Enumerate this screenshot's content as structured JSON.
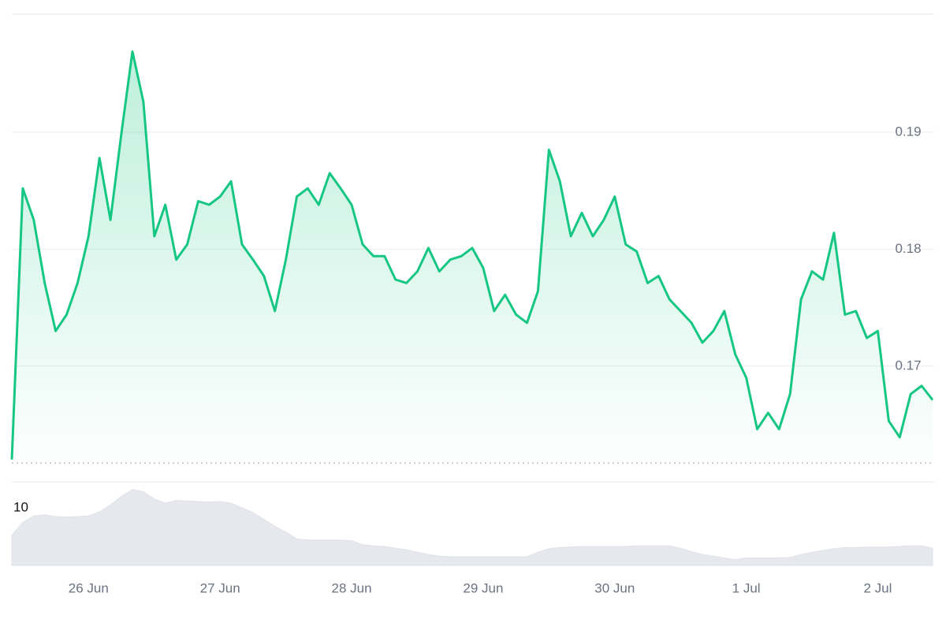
{
  "chart_data": {
    "type": "line",
    "categories": [
      null,
      null,
      null,
      null,
      null,
      null,
      null,
      "26 Jun",
      null,
      null,
      null,
      null,
      null,
      null,
      null,
      null,
      null,
      null,
      null,
      "27 Jun",
      null,
      null,
      null,
      null,
      null,
      null,
      null,
      null,
      null,
      null,
      null,
      "28 Jun",
      null,
      null,
      null,
      null,
      null,
      null,
      null,
      null,
      null,
      null,
      null,
      "29 Jun",
      null,
      null,
      null,
      null,
      null,
      null,
      null,
      null,
      null,
      null,
      null,
      "30 Jun",
      null,
      null,
      null,
      null,
      null,
      null,
      null,
      null,
      null,
      null,
      null,
      "1 Jul",
      null,
      null,
      null,
      null,
      null,
      null,
      null,
      null,
      null,
      null,
      null,
      "2 Jul",
      null,
      null,
      null,
      null,
      null
    ],
    "series": [
      {
        "color": "#16c784",
        "values": [
          0.162,
          0.1852,
          0.1825,
          0.1771,
          0.173,
          0.1744,
          0.1771,
          0.1811,
          0.1878,
          0.1825,
          0.1899,
          0.1969,
          0.1926,
          0.1811,
          0.1838,
          0.1791,
          0.1804,
          0.1841,
          0.1838,
          0.1845,
          0.1858,
          0.1804,
          0.1791,
          0.1777,
          0.1747,
          0.1791,
          0.1845,
          0.1852,
          0.1838,
          0.1865,
          0.1852,
          0.1838,
          0.1804,
          0.1794,
          0.1794,
          0.1774,
          0.1771,
          0.1781,
          0.1801,
          0.1781,
          0.1791,
          0.1794,
          0.1801,
          0.1784,
          0.1747,
          0.1761,
          0.1744,
          0.1737,
          0.1764,
          0.1885,
          0.1858,
          0.1811,
          0.1831,
          0.1811,
          0.1825,
          0.1845,
          0.1804,
          0.1798,
          0.1771,
          0.1777,
          0.1757,
          0.1747,
          0.1737,
          0.172,
          0.173,
          0.1747,
          0.171,
          0.169,
          0.1646,
          0.166,
          0.1646,
          0.1676,
          0.1757,
          0.1781,
          0.1774,
          0.1814,
          0.1744,
          0.1747,
          0.1724,
          0.173,
          0.1653,
          0.1639,
          0.1676,
          0.1683,
          0.1671
        ]
      },
      {
        "color": "#e6e8ee",
        "axis": "y2",
        "values": [
          5.2,
          7.5,
          8.6,
          8.8,
          8.5,
          8.4,
          8.5,
          8.6,
          9.3,
          10.5,
          12.0,
          13.2,
          12.8,
          11.5,
          10.8,
          11.3,
          11.2,
          11.1,
          11.0,
          11.1,
          10.8,
          10.0,
          9.2,
          8.0,
          6.8,
          5.8,
          4.6,
          4.4,
          4.4,
          4.4,
          4.4,
          4.3,
          3.6,
          3.4,
          3.3,
          3.0,
          2.7,
          2.3,
          1.9,
          1.6,
          1.5,
          1.5,
          1.5,
          1.5,
          1.5,
          1.5,
          1.5,
          1.5,
          2.3,
          2.9,
          3.1,
          3.2,
          3.3,
          3.3,
          3.3,
          3.3,
          3.3,
          3.4,
          3.4,
          3.4,
          3.4,
          3.0,
          2.4,
          1.9,
          1.6,
          1.3,
          1.0,
          1.3,
          1.3,
          1.3,
          1.3,
          1.4,
          1.9,
          2.3,
          2.6,
          2.9,
          3.1,
          3.1,
          3.2,
          3.2,
          3.2,
          3.3,
          3.4,
          3.4,
          3.0
        ]
      }
    ],
    "ylim": [
      0.1617,
      0.2001
    ],
    "yticks": [
      0.17,
      0.18,
      0.19
    ],
    "y2lim": [
      0,
      14.5
    ],
    "y2ticks": [
      10
    ],
    "grid": true
  }
}
